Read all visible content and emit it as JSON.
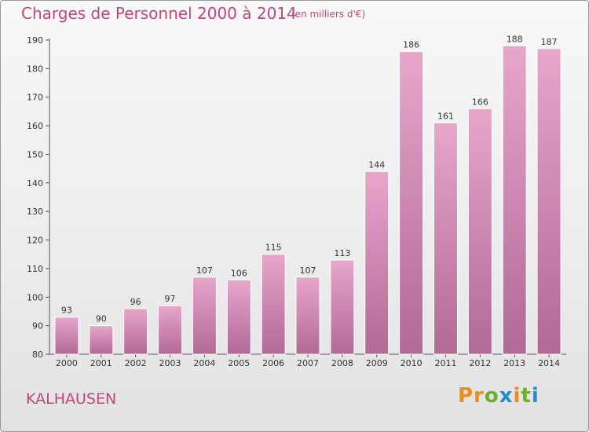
{
  "header": {
    "title": "Charges de Personnel 2000 à 2014",
    "unit": "(en milliers d'€)"
  },
  "footer": {
    "commune": "KALHAUSEN",
    "logo_text": "Proxiti"
  },
  "colors": {
    "accent": "#c2457f",
    "bar_top": "#e8a6cb",
    "bar_bottom": "#b06a95"
  },
  "chart_data": {
    "type": "bar",
    "categories": [
      "2000",
      "2001",
      "2002",
      "2003",
      "2004",
      "2005",
      "2006",
      "2007",
      "2008",
      "2009",
      "2010",
      "2011",
      "2012",
      "2013",
      "2014"
    ],
    "values": [
      93,
      90,
      96,
      97,
      107,
      106,
      115,
      107,
      113,
      144,
      186,
      161,
      166,
      188,
      187
    ],
    "ylim": [
      80,
      190
    ],
    "yticks": [
      80,
      90,
      100,
      110,
      120,
      130,
      140,
      150,
      160,
      170,
      180,
      190
    ],
    "grid": false
  }
}
